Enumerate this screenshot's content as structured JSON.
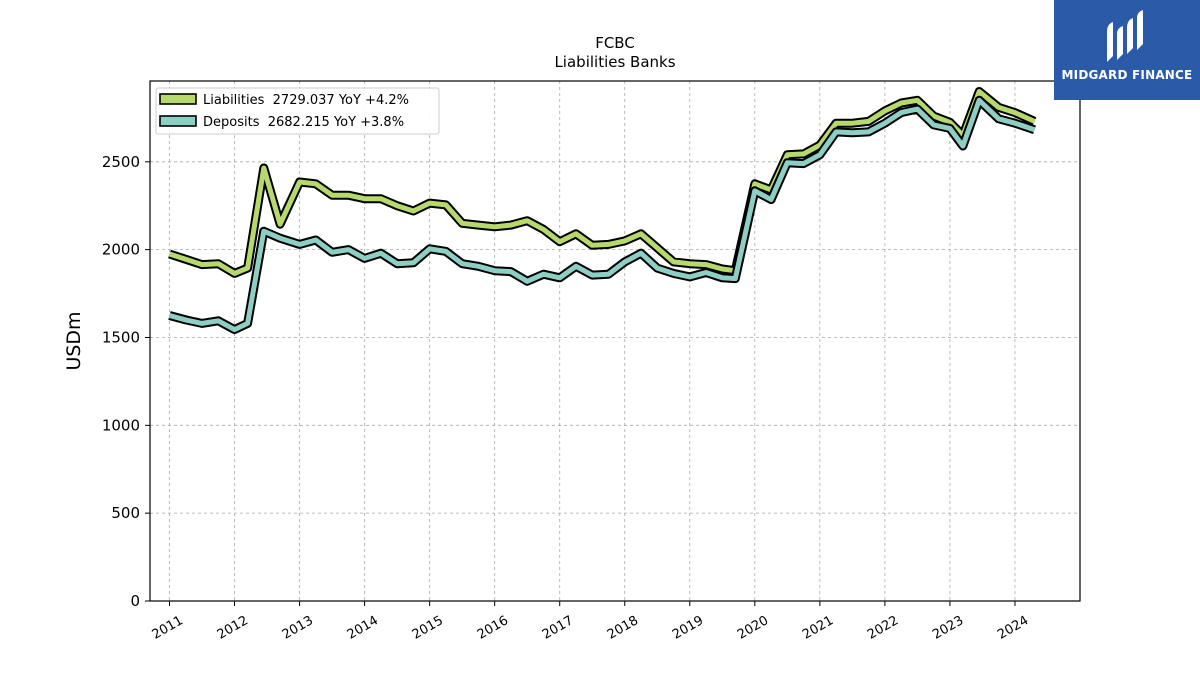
{
  "chart_data": {
    "type": "line",
    "title": "FCBC",
    "subtitle": "Liabilities Banks",
    "xlabel": "",
    "ylabel": "USDm",
    "ylim": [
      0,
      2960
    ],
    "xlim": [
      2010.7,
      2025.0
    ],
    "yticks": [
      0,
      500,
      1000,
      1500,
      2000,
      2500
    ],
    "xticks": [
      "2011",
      "2012",
      "2013",
      "2014",
      "2015",
      "2016",
      "2017",
      "2018",
      "2019",
      "2020",
      "2021",
      "2022",
      "2023",
      "2024"
    ],
    "grid": true,
    "legend_position": "top-left",
    "series": [
      {
        "name": "Liabilities",
        "legend": "Liabilities  2729.037 YoY +4.2%",
        "color": "#b5d96a",
        "x": [
          2011.0,
          2011.25,
          2011.5,
          2011.75,
          2012.0,
          2012.2,
          2012.45,
          2012.7,
          2013.0,
          2013.25,
          2013.5,
          2013.75,
          2014.0,
          2014.25,
          2014.5,
          2014.75,
          2015.0,
          2015.25,
          2015.5,
          2015.75,
          2016.0,
          2016.25,
          2016.5,
          2016.75,
          2017.0,
          2017.25,
          2017.5,
          2017.75,
          2018.0,
          2018.25,
          2018.5,
          2018.75,
          2019.0,
          2019.25,
          2019.5,
          2019.7,
          2020.0,
          2020.25,
          2020.5,
          2020.75,
          2021.0,
          2021.25,
          2021.5,
          2021.75,
          2022.0,
          2022.25,
          2022.5,
          2022.75,
          2023.0,
          2023.2,
          2023.45,
          2023.75,
          2024.0,
          2024.3
        ],
        "values": [
          1975,
          1945,
          1915,
          1920,
          1865,
          1895,
          2465,
          2145,
          2385,
          2375,
          2310,
          2310,
          2290,
          2290,
          2250,
          2220,
          2265,
          2255,
          2150,
          2140,
          2130,
          2140,
          2165,
          2115,
          2045,
          2090,
          2025,
          2030,
          2050,
          2090,
          2010,
          1930,
          1920,
          1915,
          1890,
          1880,
          2375,
          2340,
          2540,
          2545,
          2595,
          2720,
          2720,
          2730,
          2790,
          2835,
          2850,
          2760,
          2725,
          2650,
          2900,
          2810,
          2780,
          2730
        ]
      },
      {
        "name": "Deposits",
        "legend": "Deposits  2682.215 YoY +3.8%",
        "color": "#8ccfc4",
        "x": [
          2011.0,
          2011.25,
          2011.5,
          2011.75,
          2012.0,
          2012.2,
          2012.45,
          2012.7,
          2013.0,
          2013.25,
          2013.5,
          2013.75,
          2014.0,
          2014.25,
          2014.5,
          2014.75,
          2015.0,
          2015.25,
          2015.5,
          2015.75,
          2016.0,
          2016.25,
          2016.5,
          2016.75,
          2017.0,
          2017.25,
          2017.5,
          2017.75,
          2018.0,
          2018.25,
          2018.5,
          2018.75,
          2019.0,
          2019.25,
          2019.5,
          2019.7,
          2020.0,
          2020.25,
          2020.5,
          2020.75,
          2021.0,
          2021.25,
          2021.5,
          2021.75,
          2022.0,
          2022.25,
          2022.5,
          2022.75,
          2023.0,
          2023.2,
          2023.45,
          2023.75,
          2024.0,
          2024.3
        ],
        "values": [
          1625,
          1600,
          1580,
          1595,
          1545,
          1580,
          2105,
          2065,
          2030,
          2055,
          1985,
          2000,
          1950,
          1980,
          1920,
          1925,
          2005,
          1990,
          1920,
          1905,
          1880,
          1875,
          1820,
          1860,
          1840,
          1905,
          1855,
          1860,
          1930,
          1980,
          1895,
          1865,
          1845,
          1870,
          1840,
          1835,
          2335,
          2285,
          2495,
          2490,
          2540,
          2670,
          2665,
          2670,
          2720,
          2780,
          2800,
          2710,
          2690,
          2590,
          2850,
          2745,
          2720,
          2682
        ]
      }
    ]
  },
  "logo": {
    "text": "MIDGARD FINANCE",
    "color": "#2a5aa8"
  }
}
